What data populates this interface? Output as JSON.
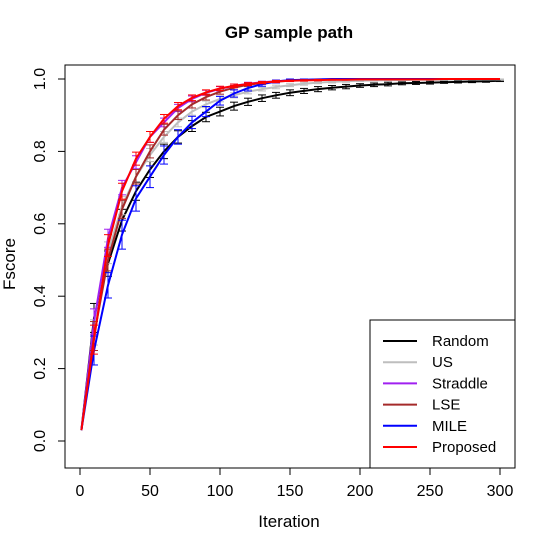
{
  "chart_data": {
    "type": "line",
    "title": "GP sample path",
    "xlabel": "Iteration",
    "ylabel": "Fscore",
    "xlim": [
      0,
      300
    ],
    "ylim": [
      0,
      1
    ],
    "xticks": [
      0,
      50,
      100,
      150,
      200,
      250,
      300
    ],
    "yticks": [
      0.0,
      0.2,
      0.4,
      0.6,
      0.8,
      1.0
    ],
    "ytick_labels": [
      "0.0",
      "0.2",
      "0.4",
      "0.6",
      "0.8",
      "1.0"
    ],
    "legend_position": "bottom-right",
    "grid": false,
    "x": [
      1,
      10,
      20,
      30,
      40,
      50,
      60,
      70,
      80,
      90,
      100,
      110,
      120,
      130,
      140,
      150,
      160,
      170,
      180,
      190,
      200,
      210,
      220,
      230,
      240,
      250,
      260,
      270,
      280,
      290,
      300
    ],
    "series": [
      {
        "name": "Random",
        "color": "#000000",
        "values": [
          0.03,
          0.34,
          0.49,
          0.61,
          0.69,
          0.75,
          0.8,
          0.84,
          0.87,
          0.895,
          0.91,
          0.925,
          0.937,
          0.947,
          0.955,
          0.962,
          0.967,
          0.972,
          0.976,
          0.979,
          0.982,
          0.984,
          0.986,
          0.988,
          0.989,
          0.99,
          0.991,
          0.992,
          0.993,
          0.994,
          0.995
        ],
        "errors": [
          0.0,
          0.04,
          0.035,
          0.03,
          0.025,
          0.022,
          0.02,
          0.017,
          0.015,
          0.013,
          0.012,
          0.011,
          0.01,
          0.009,
          0.008,
          0.008,
          0.007,
          0.007,
          0.006,
          0.006,
          0.005,
          0.005,
          0.005,
          0.004,
          0.004,
          0.004,
          0.003,
          0.003,
          0.003,
          0.003,
          0.002
        ]
      },
      {
        "name": "US",
        "color": "#bebebe",
        "values": [
          0.03,
          0.3,
          0.52,
          0.65,
          0.73,
          0.79,
          0.84,
          0.88,
          0.91,
          0.93,
          0.945,
          0.955,
          0.965,
          0.972,
          0.978,
          0.983,
          0.987,
          0.99,
          0.992,
          0.994,
          0.995,
          0.996,
          0.997,
          0.997,
          0.998,
          0.998,
          0.998,
          0.999,
          0.999,
          0.999,
          0.999
        ],
        "errors": [
          0.0,
          0.035,
          0.03,
          0.025,
          0.02,
          0.018,
          0.015,
          0.012,
          0.01,
          0.009,
          0.008,
          0.007,
          0.006,
          0.005,
          0.005,
          0.004,
          0.004,
          0.003,
          0.003,
          0.003,
          0.002,
          0.002,
          0.002,
          0.002,
          0.001,
          0.001,
          0.001,
          0.001,
          0.001,
          0.001,
          0.001
        ]
      },
      {
        "name": "Straddle",
        "color": "#a020f0",
        "values": [
          0.03,
          0.33,
          0.56,
          0.7,
          0.77,
          0.84,
          0.88,
          0.92,
          0.945,
          0.962,
          0.973,
          0.981,
          0.987,
          0.991,
          0.994,
          0.996,
          0.997,
          0.998,
          0.999,
          0.999,
          1.0,
          1.0,
          1.0,
          1.0,
          1.0,
          1.0,
          1.0,
          1.0,
          1.0,
          1.0,
          1.0
        ],
        "errors": [
          0.0,
          0.035,
          0.025,
          0.02,
          0.018,
          0.015,
          0.012,
          0.01,
          0.008,
          0.007,
          0.006,
          0.005,
          0.004,
          0.003,
          0.003,
          0.002,
          0.002,
          0.001,
          0.001,
          0.001,
          0.0,
          0.0,
          0.0,
          0.0,
          0.0,
          0.0,
          0.0,
          0.0,
          0.0,
          0.0,
          0.0
        ]
      },
      {
        "name": "LSE",
        "color": "#a52a2a",
        "values": [
          0.03,
          0.29,
          0.5,
          0.64,
          0.73,
          0.8,
          0.86,
          0.9,
          0.93,
          0.95,
          0.965,
          0.976,
          0.984,
          0.989,
          0.993,
          0.995,
          0.997,
          0.998,
          0.999,
          0.999,
          1.0,
          1.0,
          1.0,
          1.0,
          1.0,
          1.0,
          1.0,
          1.0,
          1.0,
          1.0,
          1.0
        ],
        "errors": [
          0.0,
          0.04,
          0.03,
          0.025,
          0.02,
          0.018,
          0.015,
          0.012,
          0.01,
          0.008,
          0.007,
          0.006,
          0.005,
          0.004,
          0.003,
          0.002,
          0.002,
          0.001,
          0.001,
          0.001,
          0.0,
          0.0,
          0.0,
          0.0,
          0.0,
          0.0,
          0.0,
          0.0,
          0.0,
          0.0,
          0.0
        ]
      },
      {
        "name": "MILE",
        "color": "#0000ff",
        "values": [
          0.03,
          0.25,
          0.43,
          0.57,
          0.67,
          0.73,
          0.79,
          0.84,
          0.88,
          0.91,
          0.94,
          0.96,
          0.975,
          0.986,
          0.993,
          0.997,
          0.998,
          0.999,
          1.0,
          1.0,
          1.0,
          1.0,
          1.0,
          1.0,
          1.0,
          1.0,
          1.0,
          1.0,
          1.0,
          1.0,
          1.0
        ],
        "errors": [
          0.0,
          0.04,
          0.035,
          0.04,
          0.035,
          0.03,
          0.025,
          0.02,
          0.017,
          0.014,
          0.012,
          0.01,
          0.008,
          0.006,
          0.004,
          0.003,
          0.002,
          0.001,
          0.0,
          0.0,
          0.0,
          0.0,
          0.0,
          0.0,
          0.0,
          0.0,
          0.0,
          0.0,
          0.0,
          0.0,
          0.0
        ]
      },
      {
        "name": "Proposed",
        "color": "#ff0000",
        "values": [
          0.03,
          0.28,
          0.54,
          0.69,
          0.78,
          0.84,
          0.89,
          0.925,
          0.948,
          0.963,
          0.974,
          0.981,
          0.986,
          0.99,
          0.993,
          0.995,
          0.996,
          0.997,
          0.998,
          0.998,
          0.999,
          0.999,
          0.999,
          0.999,
          0.999,
          0.999,
          1.0,
          1.0,
          1.0,
          1.0,
          1.0
        ],
        "errors": [
          0.0,
          0.04,
          0.03,
          0.022,
          0.018,
          0.015,
          0.012,
          0.01,
          0.008,
          0.007,
          0.006,
          0.005,
          0.004,
          0.003,
          0.003,
          0.002,
          0.002,
          0.002,
          0.001,
          0.001,
          0.001,
          0.001,
          0.001,
          0.001,
          0.001,
          0.001,
          0.0,
          0.0,
          0.0,
          0.0,
          0.0
        ]
      }
    ]
  }
}
